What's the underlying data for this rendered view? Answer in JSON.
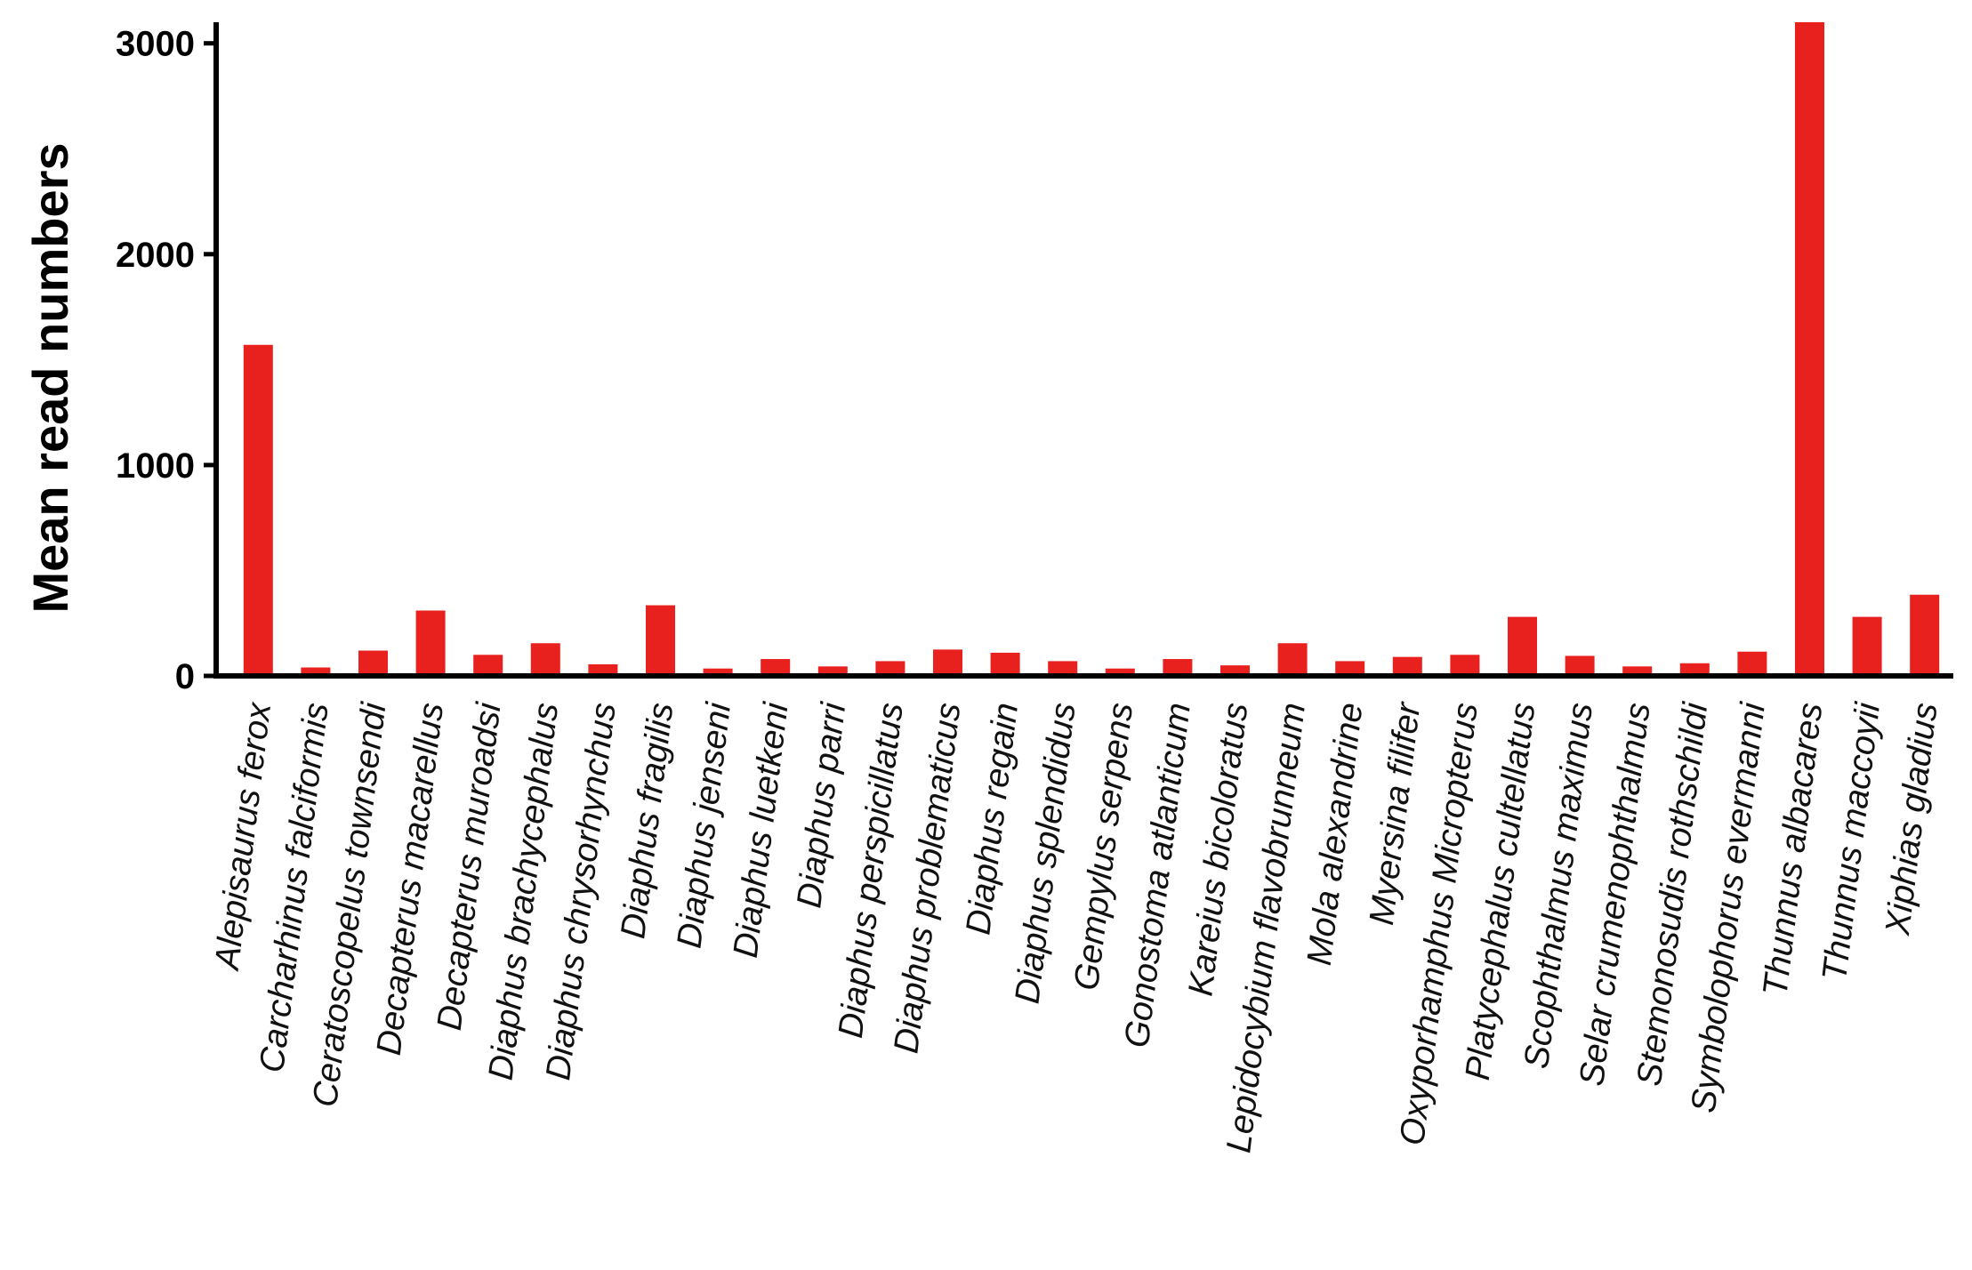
{
  "chart_data": {
    "type": "bar",
    "title": "",
    "xlabel": "",
    "ylabel": "Mean read numbers",
    "ylim": [
      0,
      3100
    ],
    "yticks": [
      0,
      1000,
      2000,
      3000
    ],
    "ytick_labels": [
      "0",
      "1000",
      "2000",
      "3000"
    ],
    "grid": false,
    "bar_color": "#e8201e",
    "categories": [
      "Alepisaurus ferox",
      "Carcharhinus falciformis",
      "Ceratoscopelus townsendi",
      "Decapterus macarellus",
      "Decapterus muroadsi",
      "Diaphus brachycephalus",
      "Diaphus chrysorhynchus",
      "Diaphus fragilis",
      "Diaphus jenseni",
      "Diaphus luetkeni",
      "Diaphus parri",
      "Diaphus perspicillatus",
      "Diaphus problematicus",
      "Diaphus regain",
      "Diaphus splendidus",
      "Gempylus serpens",
      "Gonostoma atlanticum",
      "Kareius bicoloratus",
      "Lepidocybium flavobrunneum",
      "Mola alexandrine",
      "Myersina filifer",
      "Oxyporhamphus Micropterus",
      "Platycephalus cultellatus",
      "Scophthalmus maximus",
      "Selar crumenophthalmus",
      "Stemonosudis rothschildi",
      "Symbolophorus evermanni",
      "Thunnus albacares",
      "Thunnus maccoyii",
      "Xiphias gladius"
    ],
    "values": [
      1570,
      40,
      120,
      310,
      100,
      155,
      55,
      335,
      35,
      80,
      45,
      70,
      125,
      110,
      70,
      35,
      80,
      50,
      155,
      70,
      90,
      100,
      280,
      95,
      45,
      60,
      115,
      3100,
      280,
      385
    ]
  }
}
